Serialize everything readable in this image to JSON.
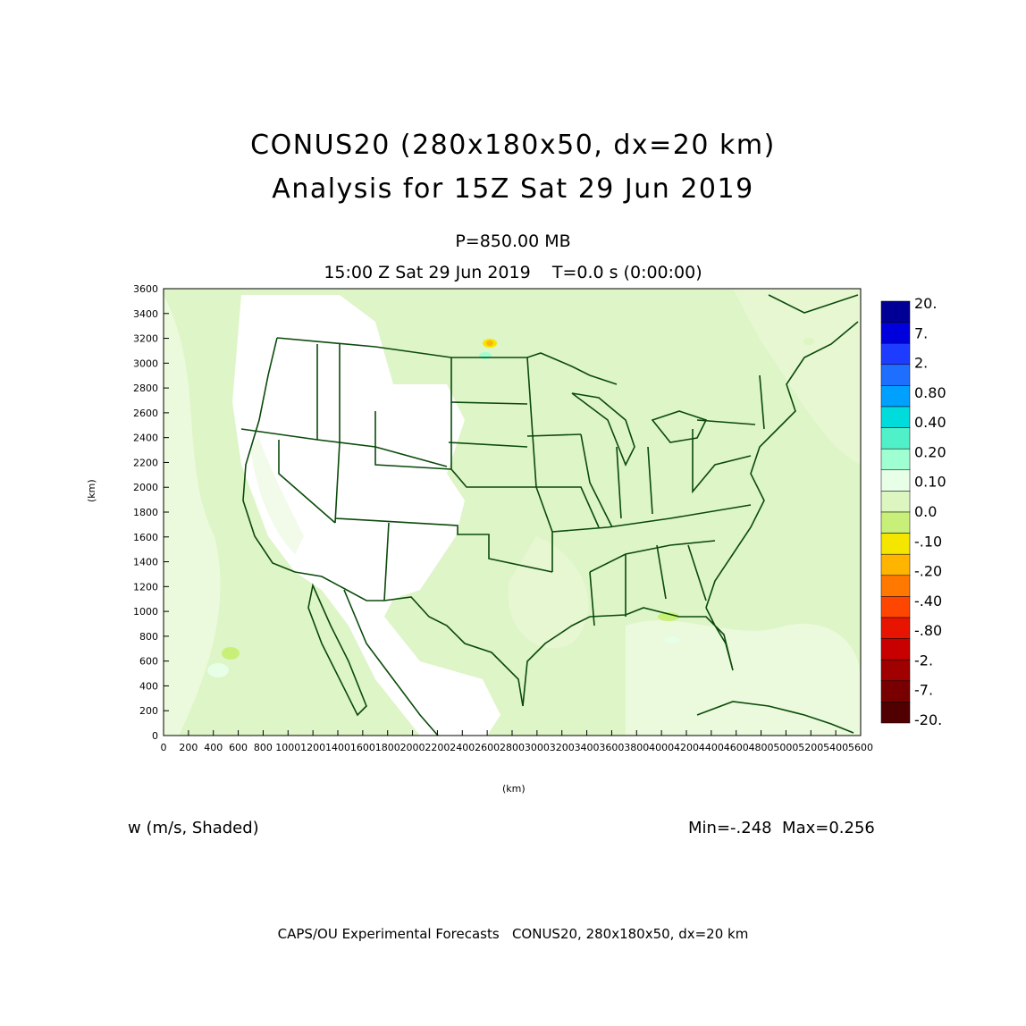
{
  "title_line1": "CONUS20 (280x180x50, dx=20 km)",
  "title_line2": "Analysis for 15Z Sat 29 Jun 2019",
  "level": "P=850.00 MB",
  "valid_time": "15:00 Z Sat 29 Jun 2019    T=0.0 s (0:00:00)",
  "y_axis_label": "(km)",
  "x_axis_label": "(km)",
  "field_label": "w (m/s, Shaded)",
  "min_max": "Min=-.248  Max=0.256",
  "footer": "CAPS/OU Experimental Forecasts   CONUS20, 280x180x50, dx=20 km",
  "x_ticks": [
    "0",
    "200",
    "400",
    "600",
    "800",
    "1000",
    "1200",
    "1400",
    "1600",
    "1800",
    "2000",
    "2200",
    "2400",
    "2600",
    "2800",
    "3000",
    "3200",
    "3400",
    "3600",
    "3800",
    "4000",
    "4200",
    "4400",
    "4600",
    "4800",
    "5000",
    "5200",
    "5400",
    "5600"
  ],
  "y_ticks": [
    "0",
    "200",
    "400",
    "600",
    "800",
    "1000",
    "1200",
    "1400",
    "1600",
    "1800",
    "2000",
    "2200",
    "2400",
    "2600",
    "2800",
    "3000",
    "3200",
    "3400",
    "3600"
  ],
  "colorbar": {
    "labels": [
      "20.",
      "7.",
      "2.",
      "0.80",
      "0.40",
      "0.20",
      "0.10",
      "0.0",
      "-.10",
      "-.20",
      "-.40",
      "-.80",
      "-2.",
      "-7.",
      "-20."
    ],
    "colors": [
      "#000096",
      "#0000dc",
      "#1e3cff",
      "#1e6eff",
      "#00a0ff",
      "#00dcdc",
      "#50f0c8",
      "#a0ffd2",
      "#e6ffe6",
      "#ddf5c0",
      "#c8f078",
      "#f5e600",
      "#ffb400",
      "#ff7800",
      "#ff4600",
      "#e61400",
      "#c80000",
      "#a00000",
      "#780000",
      "#500000"
    ]
  },
  "chart_data": {
    "type": "map",
    "xlim": [
      0,
      5600
    ],
    "ylim": [
      0,
      3600
    ],
    "field": "w",
    "units": "m/s",
    "min": -0.248,
    "max": 0.256
  }
}
